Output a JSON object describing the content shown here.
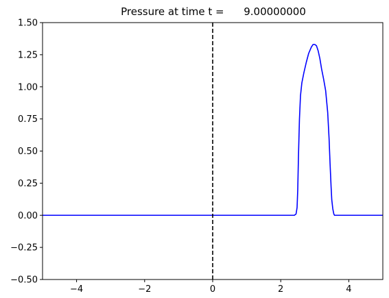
{
  "chart_data": {
    "type": "line",
    "title": "Pressure at time t =      9.00000000",
    "xlabel": "",
    "ylabel": "",
    "xlim": [
      -5,
      5
    ],
    "ylim": [
      -0.5,
      1.5
    ],
    "x_ticks": [
      -4,
      -2,
      0,
      2,
      4
    ],
    "x_tick_labels": [
      "−4",
      "−2",
      "0",
      "2",
      "4"
    ],
    "y_ticks": [
      -0.5,
      -0.25,
      0,
      0.25,
      0.5,
      0.75,
      1.0,
      1.25,
      1.5
    ],
    "y_tick_labels": [
      "−0.50",
      "−0.25",
      "0.00",
      "0.25",
      "0.50",
      "0.75",
      "1.00",
      "1.25",
      "1.50"
    ],
    "grid": false,
    "series": [
      {
        "color": "#0000ff",
        "x": [
          -5.0,
          2.4,
          2.45,
          2.48,
          2.5,
          2.52,
          2.55,
          2.58,
          2.62,
          2.68,
          2.75,
          2.82,
          2.9,
          2.95,
          3.0,
          3.05,
          3.1,
          3.15,
          3.2,
          3.26,
          3.32,
          3.38,
          3.42,
          3.45,
          3.48,
          3.5,
          3.53,
          3.56,
          3.58,
          3.6,
          3.65,
          5.0
        ],
        "y": [
          0.0,
          0.0,
          0.01,
          0.06,
          0.2,
          0.45,
          0.75,
          0.93,
          1.03,
          1.11,
          1.19,
          1.26,
          1.31,
          1.33,
          1.33,
          1.32,
          1.28,
          1.22,
          1.14,
          1.06,
          0.97,
          0.8,
          0.6,
          0.4,
          0.22,
          0.12,
          0.05,
          0.01,
          0.0,
          0.0,
          0.0,
          0.0
        ]
      }
    ],
    "vlines": [
      {
        "x": 0,
        "style": "dashed",
        "color": "#000000"
      }
    ]
  }
}
